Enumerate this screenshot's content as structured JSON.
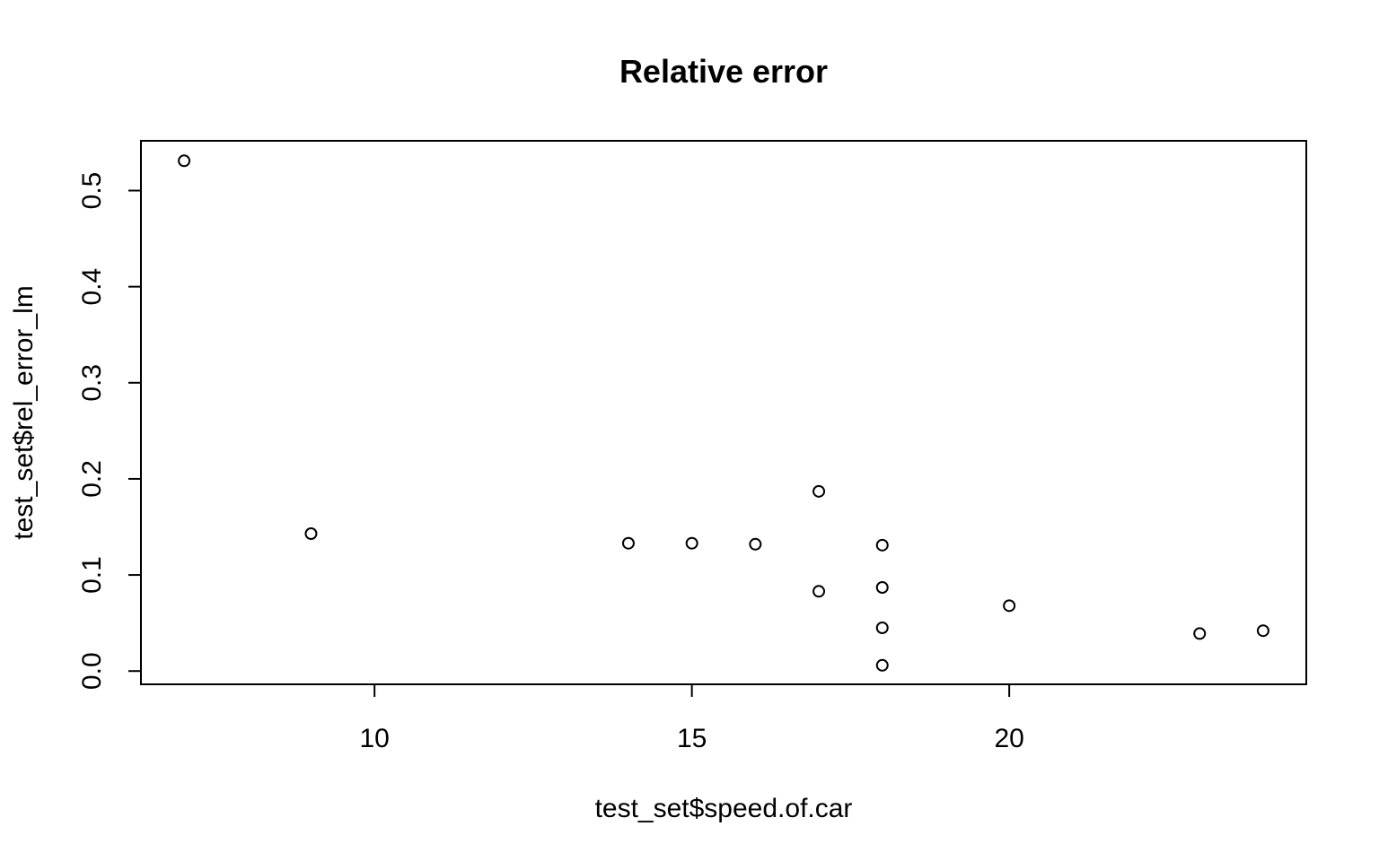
{
  "chart_data": {
    "type": "scatter",
    "title": "Relative error",
    "xlabel": "test_set$speed.of.car",
    "ylabel": "test_set$rel_error_lm",
    "xlim": [
      6.32,
      24.68
    ],
    "ylim": [
      -0.0138,
      0.5518
    ],
    "x_ticks": [
      10,
      15,
      20
    ],
    "x_tick_labels": [
      "10",
      "15",
      "20"
    ],
    "y_ticks": [
      0.0,
      0.1,
      0.2,
      0.3,
      0.4,
      0.5
    ],
    "y_tick_labels": [
      "0.0",
      "0.1",
      "0.2",
      "0.3",
      "0.4",
      "0.5"
    ],
    "grid": false,
    "marker": "open-circle",
    "point_color": "#000000",
    "points": [
      {
        "x": 7,
        "y": 0.531
      },
      {
        "x": 9,
        "y": 0.143
      },
      {
        "x": 14,
        "y": 0.133
      },
      {
        "x": 15,
        "y": 0.133
      },
      {
        "x": 16,
        "y": 0.132
      },
      {
        "x": 17,
        "y": 0.187
      },
      {
        "x": 17,
        "y": 0.083
      },
      {
        "x": 18,
        "y": 0.131
      },
      {
        "x": 18,
        "y": 0.087
      },
      {
        "x": 18,
        "y": 0.045
      },
      {
        "x": 18,
        "y": 0.006
      },
      {
        "x": 20,
        "y": 0.068
      },
      {
        "x": 23,
        "y": 0.039
      },
      {
        "x": 24,
        "y": 0.042
      }
    ]
  }
}
